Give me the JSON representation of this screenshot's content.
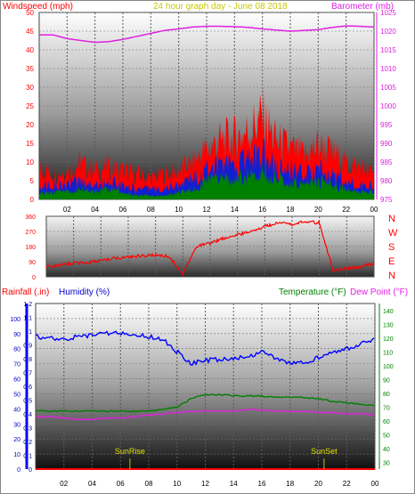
{
  "header": {
    "wind_title": "Windspeed (mph)",
    "date_title": "24 hour graph day - June 08 2018",
    "baro_title": "Barometer (mb)"
  },
  "colors": {
    "wind_gust": "#ff0000",
    "wind_avg": "#1020d0",
    "wind_min": "#008000",
    "barometer": "#e020e0",
    "direction": "#ff0000",
    "humidity": "#0000ff",
    "temperature": "#008000",
    "dewpoint": "#e020e0",
    "rain": "#ff0000",
    "sun": "#c0c000"
  },
  "middle": {
    "direction_letters": [
      "N",
      "W",
      "S",
      "E",
      "N"
    ]
  },
  "bottom": {
    "rain_title": "Rainfall (.in)",
    "humidity_title": "Humidity (%)",
    "temp_title": "Temperature (°F)",
    "dew_title": "Dew Point (°F)",
    "sunrise_label": "SunRise",
    "sunset_label": "SunSet"
  },
  "chart_data": [
    {
      "type": "area",
      "title": "24 hour graph day - June 08 2018",
      "ylabel": "Windspeed (mph)",
      "y2label": "Barometer (mb)",
      "ylim": [
        0,
        50
      ],
      "y2lim": [
        975,
        1025
      ],
      "x_ticks": [
        "02",
        "04",
        "06",
        "08",
        "10",
        "12",
        "14",
        "16",
        "18",
        "20",
        "22",
        "00"
      ],
      "y_ticks": [
        0,
        5,
        10,
        15,
        20,
        25,
        30,
        35,
        40,
        45,
        50
      ],
      "y2_ticks": [
        975,
        980,
        985,
        990,
        995,
        1000,
        1005,
        1010,
        1015,
        1020,
        1025
      ],
      "x_hours": [
        0,
        1,
        2,
        3,
        4,
        5,
        6,
        7,
        8,
        9,
        10,
        11,
        12,
        13,
        14,
        15,
        16,
        17,
        18,
        19,
        20,
        21,
        22,
        23,
        24
      ],
      "series": [
        {
          "name": "Gust",
          "values": [
            9,
            7,
            8,
            10,
            8,
            9,
            8,
            7,
            6,
            7,
            8,
            10,
            14,
            16,
            17,
            19,
            23,
            16,
            14,
            12,
            15,
            13,
            10,
            9,
            7
          ]
        },
        {
          "name": "Average",
          "values": [
            4,
            4,
            4,
            5,
            4,
            5,
            4,
            3,
            3,
            3,
            4,
            6,
            8,
            9,
            10,
            11,
            13,
            9,
            8,
            7,
            8,
            7,
            5,
            4,
            4
          ]
        },
        {
          "name": "Minimum",
          "values": [
            2,
            2,
            2,
            3,
            2,
            3,
            2,
            1,
            1,
            1,
            2,
            3,
            5,
            6,
            6,
            7,
            8,
            6,
            5,
            4,
            5,
            4,
            3,
            2,
            2
          ]
        },
        {
          "name": "Barometer",
          "values": [
            1019,
            1019,
            1018,
            1017.5,
            1017,
            1017.2,
            1017.8,
            1018.6,
            1019.4,
            1020.2,
            1020.6,
            1021.1,
            1021.3,
            1021.3,
            1021.2,
            1021,
            1020.6,
            1020.3,
            1020,
            1020.2,
            1020.4,
            1021,
            1021.4,
            1021.3,
            1021.1
          ]
        }
      ]
    },
    {
      "type": "line",
      "ylim": [
        0,
        360
      ],
      "y_ticks": [
        0,
        90,
        180,
        270,
        360
      ],
      "x_ticks": [
        "02",
        "04",
        "06",
        "08",
        "10",
        "12",
        "14",
        "16",
        "18",
        "20",
        "22",
        "00"
      ],
      "series": [
        {
          "values": [
            60,
            70,
            80,
            85,
            95,
            110,
            120,
            125,
            130,
            120,
            15,
            180,
            200,
            230,
            250,
            270,
            300,
            320,
            310,
            330,
            320,
            40,
            50,
            60,
            80
          ]
        }
      ],
      "x_hours": [
        0,
        1,
        2,
        3,
        4,
        5,
        6,
        7,
        8,
        9,
        10,
        11,
        12,
        13,
        14,
        15,
        16,
        17,
        18,
        19,
        20,
        21,
        22,
        23,
        24
      ]
    },
    {
      "type": "line",
      "ylabel": "Rainfall (.in)",
      "y2label": "Humidity (%)",
      "y3label": "Temperature (°F)",
      "y4label": "Dew Point (°F)",
      "rain_ticks": [
        0,
        0.1,
        0.2,
        0.3,
        0.4,
        0.5,
        0.6,
        0.7,
        0.8,
        0.9,
        1,
        1.1,
        1.2
      ],
      "humidity_ticks": [
        0,
        10,
        20,
        30,
        40,
        50,
        60,
        70,
        80,
        90,
        100
      ],
      "temp_ticks": [
        30,
        40,
        50,
        60,
        70,
        80,
        90,
        100,
        110,
        120,
        130,
        140
      ],
      "x_ticks": [
        "02",
        "04",
        "06",
        "08",
        "10",
        "12",
        "14",
        "16",
        "18",
        "20",
        "22",
        "00"
      ],
      "x_hours": [
        0,
        1,
        2,
        3,
        4,
        5,
        6,
        7,
        8,
        9,
        10,
        11,
        12,
        13,
        14,
        15,
        16,
        17,
        18,
        19,
        20,
        21,
        22,
        23,
        24
      ],
      "series": [
        {
          "name": "Humidity",
          "values": [
            88,
            87,
            86,
            88,
            89,
            90,
            90,
            89,
            88,
            86,
            78,
            70,
            72,
            73,
            74,
            75,
            78,
            74,
            70,
            71,
            74,
            77,
            80,
            83,
            86
          ]
        },
        {
          "name": "Temperature",
          "values": [
            67,
            67,
            67,
            67,
            67,
            67,
            67,
            67,
            67,
            68,
            70,
            76,
            79,
            79,
            78,
            78,
            78,
            77,
            77,
            77,
            76,
            74,
            73,
            72,
            71
          ]
        },
        {
          "name": "Dew Point",
          "values": [
            63,
            63,
            62,
            61,
            61,
            62,
            62,
            63,
            64,
            65,
            66,
            67,
            67,
            67,
            67,
            68,
            68,
            67,
            67,
            67,
            66,
            66,
            65,
            65,
            64
          ]
        },
        {
          "name": "Rainfall",
          "values": [
            0,
            0,
            0,
            0,
            0,
            0,
            0,
            0,
            0,
            0,
            0,
            0,
            0,
            0,
            0,
            0,
            0,
            0,
            0,
            0,
            0,
            0,
            0,
            0,
            0
          ]
        }
      ]
    }
  ]
}
